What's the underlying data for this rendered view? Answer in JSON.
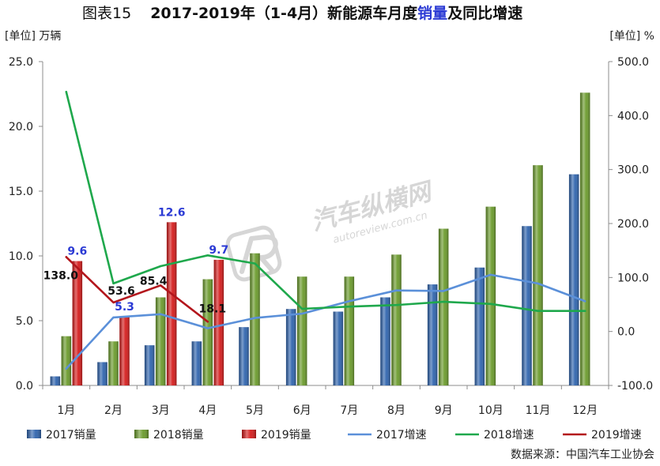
{
  "colors": {
    "title_highlight": "#2b3ad4",
    "axis": "#8c8c8c",
    "tick_text": "#222222",
    "watermark": "#cdcdcd"
  },
  "source": "数据来源：中国汽车工业协会",
  "watermark": {
    "brand": "汽车纵横网",
    "url": "autoreview.com.cn"
  },
  "chart_data": {
    "type": "bar",
    "title": {
      "prefix": "图表15",
      "before": "2017-2019年（1-4月）新能源车月度",
      "highlight": "销量",
      "after": "及同比增速"
    },
    "categories": [
      "1月",
      "2月",
      "3月",
      "4月",
      "5月",
      "6月",
      "7月",
      "8月",
      "9月",
      "10月",
      "11月",
      "12月"
    ],
    "y_left": {
      "label": "[单位] 万辆",
      "range": [
        0,
        25
      ],
      "ticks": [
        "0.0",
        "5.0",
        "10.0",
        "15.0",
        "20.0",
        "25.0"
      ]
    },
    "y_right": {
      "label": "[单位] %",
      "range": [
        -100,
        500
      ],
      "ticks": [
        "-100.0",
        "0.0",
        "100.0",
        "200.0",
        "300.0",
        "400.0",
        "500.0"
      ]
    },
    "grid": false,
    "legend": "bottom",
    "series": [
      {
        "name": "2017销量",
        "type": "bar",
        "axis": "left",
        "color": "#2e63ad",
        "values": [
          0.7,
          1.8,
          3.1,
          3.4,
          4.5,
          5.9,
          5.7,
          6.8,
          7.8,
          9.1,
          12.3,
          16.3
        ]
      },
      {
        "name": "2018销量",
        "type": "bar",
        "axis": "left",
        "color": "#6a9a2b",
        "values": [
          3.8,
          3.4,
          6.8,
          8.2,
          10.2,
          8.4,
          8.4,
          10.1,
          12.1,
          13.8,
          17.0,
          22.6
        ]
      },
      {
        "name": "2019销量",
        "type": "bar",
        "axis": "left",
        "color": "#d41b1b",
        "label_color": "#2b3ad4",
        "values": [
          9.6,
          5.3,
          12.6,
          9.7,
          null,
          null,
          null,
          null,
          null,
          null,
          null,
          null
        ],
        "labels": [
          "9.6",
          "5.3",
          "12.6",
          "9.7"
        ]
      },
      {
        "name": "2017增速",
        "type": "line",
        "axis": "right",
        "color": "#5b90d9",
        "values": [
          -69,
          26,
          32,
          6,
          25,
          33,
          56,
          76,
          75,
          105,
          89,
          56
        ]
      },
      {
        "name": "2018增速",
        "type": "line",
        "axis": "right",
        "color": "#1fa84c",
        "values": [
          444,
          89,
          121,
          141,
          126,
          42,
          46,
          49,
          55,
          51,
          38,
          38
        ]
      },
      {
        "name": "2019增速",
        "type": "line",
        "axis": "right",
        "color": "#b3161c",
        "label_color": "#111111",
        "values": [
          138.0,
          53.6,
          85.4,
          18.1,
          null,
          null,
          null,
          null,
          null,
          null,
          null,
          null
        ],
        "labels": [
          "138.0",
          "53.6",
          "85.4",
          "18.1"
        ]
      }
    ]
  }
}
